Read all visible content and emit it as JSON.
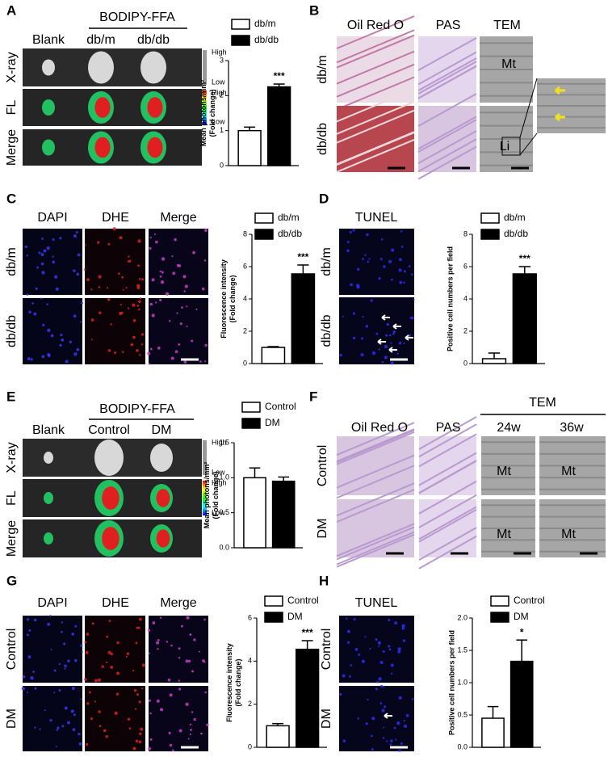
{
  "panels": [
    {
      "label": "A",
      "title": "BODIPY-FFA",
      "columns": [
        "Blank",
        "db/m",
        "db/db"
      ],
      "rows": [
        "X-ray",
        "FL",
        "Merge"
      ],
      "scale": [
        "High",
        "Low",
        "High",
        "Low"
      ]
    },
    {
      "label": "B",
      "columns": [
        "Oil Red O",
        "PAS",
        "TEM"
      ],
      "rows": [
        "db/m",
        "db/db"
      ],
      "marks": [
        "Mt",
        "Li"
      ]
    },
    {
      "label": "C",
      "columns": [
        "DAPI",
        "DHE",
        "Merge"
      ],
      "rows": [
        "db/m",
        "db/db"
      ]
    },
    {
      "label": "D",
      "columns": [
        "TUNEL"
      ],
      "rows": [
        "db/m",
        "db/db"
      ]
    },
    {
      "label": "E",
      "title": "BODIPY-FFA",
      "columns": [
        "Blank",
        "Control",
        "DM"
      ],
      "rows": [
        "X-ray",
        "FL",
        "Merge"
      ],
      "scale": [
        "High",
        "Low",
        "High",
        "Low"
      ]
    },
    {
      "label": "F",
      "title": "TEM",
      "columns": [
        "Oil Red O",
        "PAS",
        "24w",
        "36w"
      ],
      "rows": [
        "Control",
        "DM"
      ],
      "marks": [
        "Mt",
        "Mt",
        "Mt",
        "Mt"
      ]
    },
    {
      "label": "G",
      "columns": [
        "DAPI",
        "DHE",
        "Merge"
      ],
      "rows": [
        "Control",
        "DM"
      ]
    },
    {
      "label": "H",
      "columns": [
        "TUNEL"
      ],
      "rows": [
        "Control",
        "DM"
      ]
    }
  ],
  "chart_data": [
    {
      "type": "bar",
      "y_label": [
        "Mean photons/mm²",
        "(Fold change)"
      ],
      "ylim": [
        0,
        3
      ],
      "yticks": [
        0,
        1,
        2,
        3
      ],
      "annotation": "***",
      "series": [
        {
          "name": "db/m",
          "color": "#ffffff",
          "values": [
            1.0
          ],
          "errors": [
            0.1
          ]
        },
        {
          "name": "db/db",
          "color": "#000000",
          "values": [
            2.25
          ],
          "errors": [
            0.08
          ]
        }
      ]
    },
    {
      "type": "bar",
      "y_label": [
        "Fluorescence intensity",
        "(Fold change)"
      ],
      "ylim": [
        0,
        8
      ],
      "yticks": [
        0,
        2,
        4,
        6,
        8
      ],
      "annotation": "***",
      "series": [
        {
          "name": "db/m",
          "color": "#ffffff",
          "values": [
            1.0
          ],
          "errors": [
            0.05
          ]
        },
        {
          "name": "db/db",
          "color": "#000000",
          "values": [
            5.55
          ],
          "errors": [
            0.55
          ]
        }
      ]
    },
    {
      "type": "bar",
      "y_label": [
        "Positive cell numbers per field"
      ],
      "ylim": [
        0,
        8
      ],
      "yticks": [
        0,
        2,
        4,
        6,
        8
      ],
      "annotation": "***",
      "series": [
        {
          "name": "db/m",
          "color": "#ffffff",
          "values": [
            0.3
          ],
          "errors": [
            0.35
          ]
        },
        {
          "name": "db/db",
          "color": "#000000",
          "values": [
            5.55
          ],
          "errors": [
            0.45
          ]
        }
      ]
    },
    {
      "type": "bar",
      "y_label": [
        "Mean photons/mm²",
        "(Fold change)"
      ],
      "ylim": [
        0,
        1.5
      ],
      "yticks": [
        {
          "value": 0,
          "label": "0.0"
        },
        {
          "value": 0.5,
          "label": "0.5"
        },
        {
          "value": 1,
          "label": "1.0"
        },
        {
          "value": 1.5,
          "label": "1.5"
        }
      ],
      "series": [
        {
          "name": "Control",
          "color": "#ffffff",
          "values": [
            1.0
          ],
          "errors": [
            0.14
          ]
        },
        {
          "name": "DM",
          "color": "#000000",
          "values": [
            0.95
          ],
          "errors": [
            0.06
          ]
        }
      ]
    },
    {
      "type": "bar",
      "y_label": [
        "Fluorescence intensity",
        "(Fold change)"
      ],
      "ylim": [
        0,
        6
      ],
      "yticks": [
        0,
        2,
        4,
        6
      ],
      "annotation": "***",
      "series": [
        {
          "name": "Control",
          "color": "#ffffff",
          "values": [
            1.0
          ],
          "errors": [
            0.1
          ]
        },
        {
          "name": "DM",
          "color": "#000000",
          "values": [
            4.55
          ],
          "errors": [
            0.4
          ]
        }
      ]
    },
    {
      "type": "bar",
      "y_label": [
        "Positive cell numbers per field"
      ],
      "ylim": [
        0,
        2
      ],
      "yticks": [
        {
          "value": 0,
          "label": "0.0"
        },
        {
          "value": 0.5,
          "label": "0.5"
        },
        {
          "value": 1,
          "label": "1.0"
        },
        {
          "value": 1.5,
          "label": "1.5"
        },
        {
          "value": 2,
          "label": "2.0"
        }
      ],
      "annotation": "*",
      "series": [
        {
          "name": "Control",
          "color": "#ffffff",
          "values": [
            0.45
          ],
          "errors": [
            0.18
          ]
        },
        {
          "name": "DM",
          "color": "#000000",
          "values": [
            1.33
          ],
          "errors": [
            0.33
          ]
        }
      ]
    }
  ]
}
